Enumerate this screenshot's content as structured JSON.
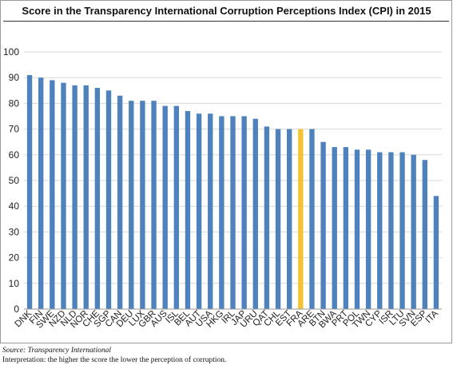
{
  "chart_data": {
    "type": "bar",
    "title": "Score in the Transparency International Corruption Perceptions Index (CPI) in 2015",
    "categories": [
      "DNK",
      "FIN",
      "SWE",
      "NZD",
      "NLD",
      "NOR",
      "CHE",
      "SGP",
      "CAN",
      "DEU",
      "LUX",
      "GBR",
      "AUS",
      "ISL",
      "BEL",
      "AUT",
      "USA",
      "HKG",
      "IRL",
      "JAP",
      "URU",
      "QAT",
      "CHL",
      "EST",
      "FRA",
      "ARE",
      "BTN",
      "BWA",
      "PRT",
      "POL",
      "TWN",
      "CYP",
      "ISR",
      "LTU",
      "SVN",
      "ESP",
      "ITA"
    ],
    "values": [
      91,
      90,
      89,
      88,
      87,
      87,
      86,
      85,
      83,
      81,
      81,
      81,
      79,
      79,
      77,
      76,
      76,
      75,
      75,
      75,
      74,
      71,
      70,
      70,
      70,
      70,
      65,
      63,
      63,
      62,
      62,
      61,
      61,
      61,
      60,
      58,
      44
    ],
    "highlight": "FRA",
    "bar_color": "#4f81bd",
    "highlight_color": "#f4c430",
    "xlabel": "",
    "ylabel": "",
    "ylim": [
      0,
      100
    ],
    "yticks": [
      0,
      10,
      20,
      30,
      40,
      50,
      60,
      70,
      80,
      90,
      100
    ],
    "grid": true
  },
  "footer": {
    "source": "Source: Transparency International",
    "interpretation": "Interpretation: the higher the score the lower the perception of corruption."
  }
}
